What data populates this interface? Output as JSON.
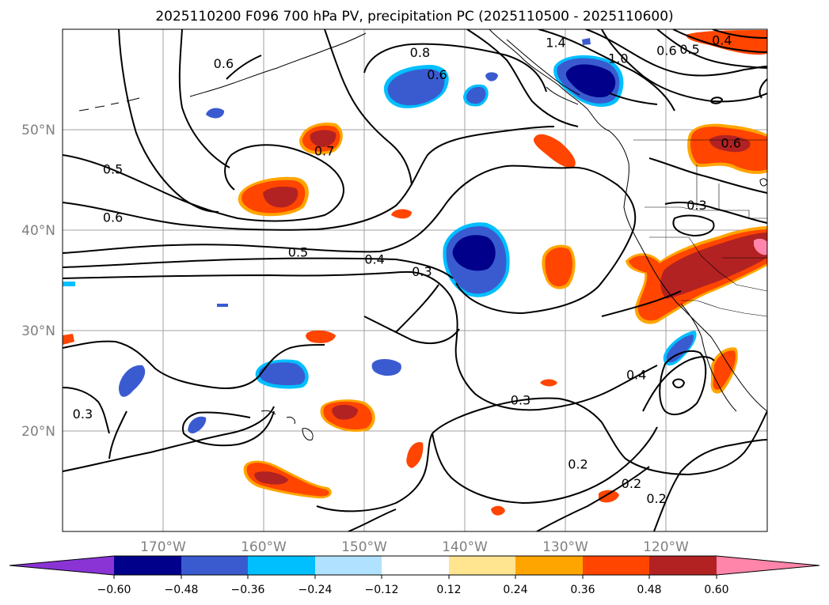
{
  "title": "2025110200 F096 700 hPa PV, precipitation PC (2025110500 - 2025110600)",
  "map": {
    "lon_range": [
      -180,
      -110
    ],
    "lat_range": [
      10,
      60
    ],
    "lon_ticks": [
      {
        "value": -170,
        "label": "170°W"
      },
      {
        "value": -160,
        "label": "160°W"
      },
      {
        "value": -150,
        "label": "150°W"
      },
      {
        "value": -140,
        "label": "140°W"
      },
      {
        "value": -130,
        "label": "130°W"
      },
      {
        "value": -120,
        "label": "120°W"
      }
    ],
    "lat_ticks": [
      {
        "value": 20,
        "label": "20°N"
      },
      {
        "value": 30,
        "label": "30°N"
      },
      {
        "value": 40,
        "label": "40°N"
      },
      {
        "value": 50,
        "label": "50°N"
      }
    ],
    "contour_labels": [
      {
        "text": "0.8",
        "lon": -144.5,
        "lat": 57.6
      },
      {
        "text": "1.4",
        "lon": -131.0,
        "lat": 58.6
      },
      {
        "text": "1.0",
        "lon": -124.8,
        "lat": 57.0
      },
      {
        "text": "0.6",
        "lon": -120.0,
        "lat": 57.8
      },
      {
        "text": "0.5",
        "lon": -117.7,
        "lat": 57.9
      },
      {
        "text": "0.4",
        "lon": -114.5,
        "lat": 58.8
      },
      {
        "text": "0.6",
        "lon": -164.0,
        "lat": 56.5
      },
      {
        "text": "0.6",
        "lon": -142.8,
        "lat": 55.4
      },
      {
        "text": "0.7",
        "lon": -154.0,
        "lat": 47.8
      },
      {
        "text": "0.5",
        "lon": -175.0,
        "lat": 46.0
      },
      {
        "text": "0.6",
        "lon": -175.0,
        "lat": 41.2
      },
      {
        "text": "0.5",
        "lon": -156.6,
        "lat": 37.7
      },
      {
        "text": "0.4",
        "lon": -149.0,
        "lat": 37.0
      },
      {
        "text": "0.3",
        "lon": -144.3,
        "lat": 35.8
      },
      {
        "text": "0.6",
        "lon": -113.6,
        "lat": 48.6
      },
      {
        "text": "0.3",
        "lon": -117.0,
        "lat": 42.4
      },
      {
        "text": "0.4",
        "lon": -123.0,
        "lat": 25.5
      },
      {
        "text": "0.3",
        "lon": -134.5,
        "lat": 23.0
      },
      {
        "text": "0.3",
        "lon": -178.0,
        "lat": 21.6
      },
      {
        "text": "0.2",
        "lon": -128.8,
        "lat": 16.6
      },
      {
        "text": "0.2",
        "lon": -123.5,
        "lat": 14.7
      },
      {
        "text": "0.2",
        "lon": -121.0,
        "lat": 13.2
      }
    ]
  },
  "colorbar": {
    "ticks": [
      "−0.60",
      "−0.48",
      "−0.36",
      "−0.24",
      "−0.12",
      "0.12",
      "0.24",
      "0.36",
      "0.48",
      "0.60"
    ],
    "colors": {
      "extend_low": "#8a34d6",
      "c1": "#00008b",
      "c2": "#3a5bd0",
      "c3": "#00bfff",
      "c4": "#b0e2ff",
      "c5": "#ffffff",
      "c6": "#ffe58f",
      "c7": "#ffa500",
      "c8": "#ff4500",
      "c9": "#b22222",
      "extend_high": "#ff85aa"
    }
  }
}
